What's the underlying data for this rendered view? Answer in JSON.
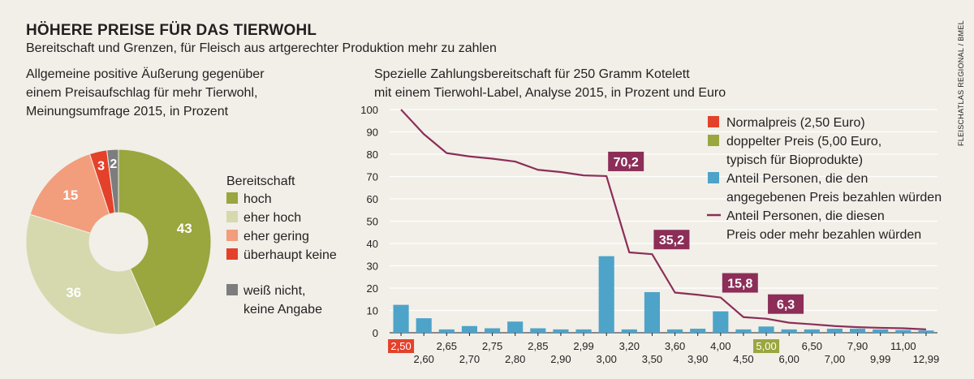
{
  "header": {
    "title": "HÖHERE PREISE FÜR DAS TIERWOHL",
    "subtitle": "Bereitschaft und Grenzen, für Fleisch aus artgerechter Produktion mehr zu zahlen",
    "source": "FLEISCHATLAS REGIONAL / BMEL"
  },
  "donut": {
    "title_lines": [
      "Allgemeine positive Äußerung gegenüber",
      "einem Preisaufschlag für mehr Tierwohl,",
      "Meinungsumfrage 2015, in Prozent"
    ]
  },
  "bars": {
    "title_lines": [
      "Spezielle Zahlungsbereitschaft für 250 Gramm Kotelett",
      "mit einem Tierwohl-Label, Analyse 2015, in Prozent und Euro"
    ]
  },
  "chart_data": [
    {
      "type": "pie",
      "legend_title": "Bereitschaft",
      "legend_placement": "right",
      "slices": [
        {
          "label": "hoch",
          "value": 43,
          "color": "#9aa63e"
        },
        {
          "label": "eher hoch",
          "value": 36,
          "color": "#d5d9ad"
        },
        {
          "label": "eher gering",
          "value": 15,
          "color": "#f29d7c"
        },
        {
          "label": "überhaupt keine",
          "value": 3,
          "color": "#e4412b"
        },
        {
          "label": "weiß nicht, keine Angabe",
          "value": 2,
          "color": "#7e7d7d"
        }
      ],
      "legend_labels": {
        "hoch": [
          "hoch"
        ],
        "eher hoch": [
          "eher hoch"
        ],
        "eher gering": [
          "eher gering"
        ],
        "überhaupt keine": [
          "überhaupt keine"
        ],
        "weiß nicht, keine Angabe": [
          "weiß nicht,",
          "keine Angabe"
        ]
      }
    },
    {
      "type": "bar",
      "categories": [
        "2,50",
        "2,60",
        "2,65",
        "2,70",
        "2,75",
        "2,80",
        "2,85",
        "2,90",
        "2,99",
        "3,00",
        "3,20",
        "3,50",
        "3,60",
        "3,90",
        "4,00",
        "4,50",
        "5,00",
        "6,00",
        "6,50",
        "7,00",
        "7,90",
        "9,99",
        "11,00",
        "12,99"
      ],
      "bar_values": [
        12.5,
        6.5,
        1.5,
        3,
        2,
        5,
        2,
        1.5,
        1.5,
        34.3,
        1.5,
        18.2,
        1.5,
        1.8,
        9.6,
        1.5,
        2.8,
        1.5,
        1.5,
        1.8,
        1.8,
        1.5,
        1.2,
        1
      ],
      "line_values": [
        100,
        89,
        80.5,
        79,
        78,
        76.7,
        73,
        72,
        70.5,
        70.2,
        36,
        35.2,
        18,
        17,
        15.8,
        7,
        6.3,
        4.5,
        3.8,
        3,
        2.5,
        2.2,
        2,
        1.5
      ],
      "ylim": [
        0,
        100
      ],
      "yticks": [
        0,
        10,
        20,
        30,
        40,
        50,
        60,
        70,
        80,
        90,
        100
      ],
      "callouts": [
        {
          "index": 9,
          "label": "70,2"
        },
        {
          "index": 11,
          "label": "35,2"
        },
        {
          "index": 14,
          "label": "15,8"
        },
        {
          "index": 16,
          "label": "6,3"
        }
      ],
      "highlight_ticks": [
        {
          "index": 0,
          "color": "#e4412b"
        },
        {
          "index": 16,
          "color": "#9aa63e"
        }
      ],
      "colors": {
        "bar": "#4ea3c9",
        "line": "#8c2e58",
        "normal": "#e4412b",
        "double": "#9aa63e"
      },
      "legend": [
        {
          "marker": "square",
          "color": "#e4412b",
          "lines": [
            "Normalpreis (2,50 Euro)"
          ]
        },
        {
          "marker": "square",
          "color": "#9aa63e",
          "lines": [
            "doppelter Preis (5,00 Euro,",
            "typisch für Bioprodukte)"
          ]
        },
        {
          "marker": "square",
          "color": "#4ea3c9",
          "lines": [
            "Anteil Personen, die den",
            "angegebenen Preis bezahlen würden"
          ]
        },
        {
          "marker": "line",
          "color": "#8c2e58",
          "lines": [
            "Anteil Personen, die diesen",
            "Preis oder mehr bezahlen würden"
          ]
        }
      ]
    }
  ]
}
